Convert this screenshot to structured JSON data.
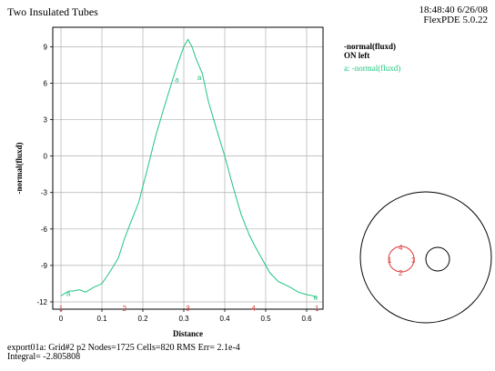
{
  "header": {
    "title": "Two Insulated Tubes",
    "time_date": "18:48:40 6/26/08",
    "version": "FlexPDE 5.0.22"
  },
  "legend": {
    "heading": "-normal(fluxd)",
    "subheading": "ON left",
    "entry": "a: -normal(fluxd)"
  },
  "footer": {
    "line1": "export01a:  Grid#2  p2  Nodes=1725 Cells=820 RMS Err= 2.1e-4",
    "line2": "Integral= -2.805808"
  },
  "colors": {
    "curve": "#1fc47f",
    "markers": "#e03a3a",
    "grid": "#b0b0b0"
  },
  "chart_data": {
    "type": "line",
    "xlabel": "Distance",
    "ylabel": "-normal(fluxd)",
    "xlim": [
      -0.02,
      0.64
    ],
    "ylim": [
      -12.6,
      10.6
    ],
    "x_ticks": [
      0,
      0.1,
      0.2,
      0.3,
      0.4,
      0.5,
      0.6
    ],
    "x_tick_labels": [
      "0",
      "0.1",
      "0.2",
      "0.3",
      "0.4",
      "0.5",
      "0.6"
    ],
    "y_ticks": [
      9,
      6,
      3,
      0,
      -3,
      -6,
      -9,
      -12
    ],
    "y_tick_labels": [
      "9",
      "6",
      "3",
      "0",
      "-3",
      "-6",
      "-9",
      "-12"
    ],
    "grid": true,
    "series": [
      {
        "name": "a: -normal(fluxd)",
        "x": [
          0,
          0.01,
          0.02,
          0.03,
          0.045,
          0.06,
          0.08,
          0.1,
          0.12,
          0.14,
          0.155,
          0.17,
          0.19,
          0.21,
          0.23,
          0.25,
          0.27,
          0.285,
          0.3,
          0.31,
          0.32,
          0.33,
          0.345,
          0.36,
          0.38,
          0.4,
          0.42,
          0.44,
          0.46,
          0.475,
          0.49,
          0.51,
          0.53,
          0.56,
          0.58,
          0.6,
          0.615,
          0.625
        ],
        "y": [
          -11.5,
          -11.3,
          -11.1,
          -11.1,
          -11.0,
          -11.2,
          -10.8,
          -10.5,
          -9.5,
          -8.4,
          -6.8,
          -5.5,
          -3.8,
          -1.2,
          1.5,
          3.8,
          6.0,
          7.6,
          9.0,
          9.6,
          9.0,
          8.0,
          6.8,
          4.5,
          2.2,
          0.0,
          -2.5,
          -4.8,
          -6.5,
          -7.5,
          -8.4,
          -9.6,
          -10.3,
          -10.8,
          -11.2,
          -11.4,
          -11.5,
          -11.7
        ]
      }
    ],
    "series_markers": [
      {
        "label": "a",
        "x": 0.018,
        "y": -11.3
      },
      {
        "label": "a",
        "x": 0.283,
        "y": 6.3
      },
      {
        "label": "a",
        "x": 0.338,
        "y": 6.5
      },
      {
        "label": "a",
        "x": 0.622,
        "y": -11.6
      }
    ],
    "point_markers": [
      {
        "label": "1",
        "x": 0.0
      },
      {
        "label": "2",
        "x": 0.155
      },
      {
        "label": "3",
        "x": 0.31
      },
      {
        "label": "4",
        "x": 0.47
      },
      {
        "label": "1",
        "x": 0.625
      }
    ]
  },
  "inset": {
    "markers": [
      "4",
      "1",
      "3",
      "2"
    ]
  }
}
